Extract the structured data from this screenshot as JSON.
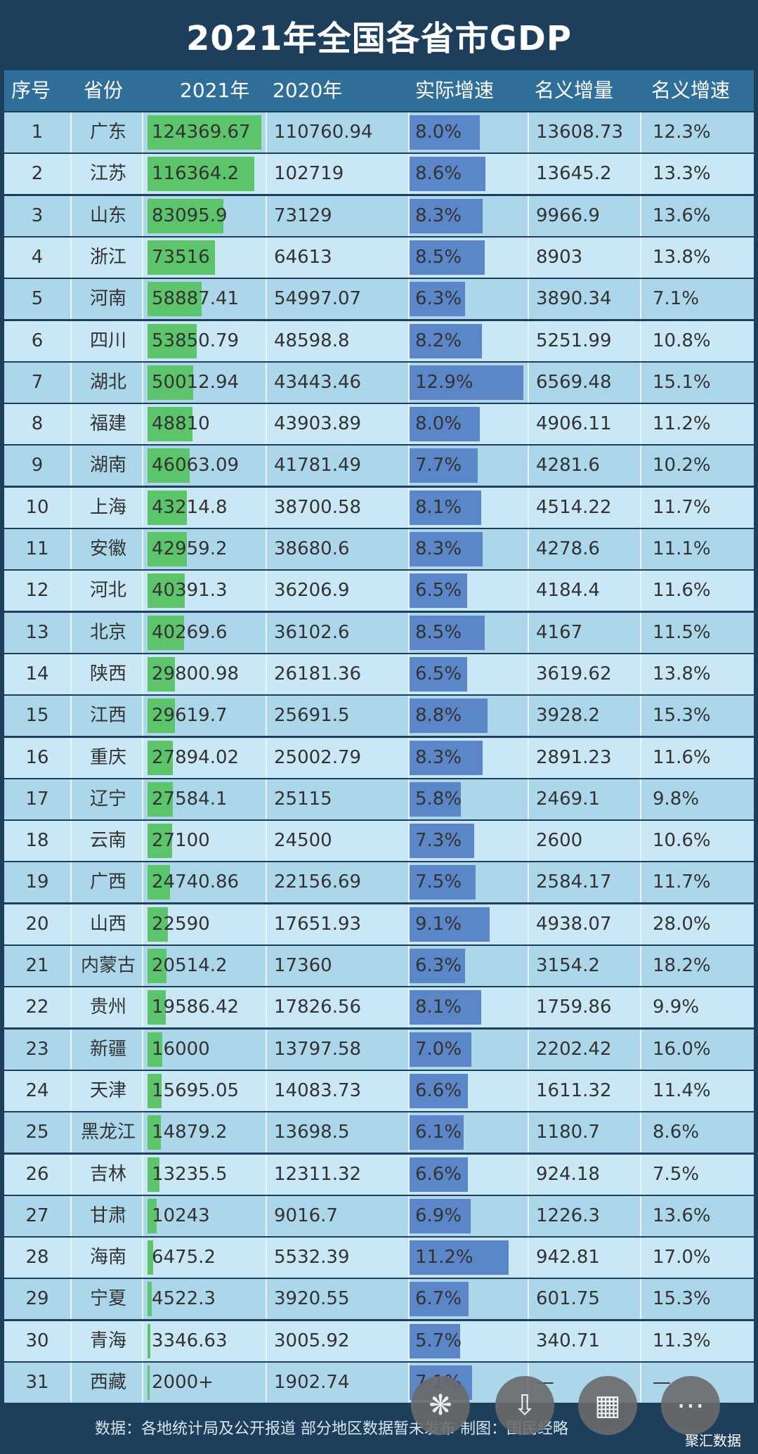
{
  "title": "2021年全国各省市GDP",
  "columns": [
    "序号",
    "省份",
    "2021年",
    "2020年",
    "实际增速",
    "名义增量",
    "名义增速"
  ],
  "chart_data": {
    "type": "table",
    "title": "2021年全国各省市GDP",
    "columns": [
      "序号",
      "省份",
      "2021年",
      "2020年",
      "实际增速",
      "名义增量",
      "名义增速"
    ],
    "rows": [
      [
        "1",
        "广东",
        "124369.67",
        "110760.94",
        "8.0%",
        "13608.73",
        "12.3%"
      ],
      [
        "2",
        "江苏",
        "116364.2",
        "102719",
        "8.6%",
        "13645.2",
        "13.3%"
      ],
      [
        "3",
        "山东",
        "83095.9",
        "73129",
        "8.3%",
        "9966.9",
        "13.6%"
      ],
      [
        "4",
        "浙江",
        "73516",
        "64613",
        "8.5%",
        "8903",
        "13.8%"
      ],
      [
        "5",
        "河南",
        "58887.41",
        "54997.07",
        "6.3%",
        "3890.34",
        "7.1%"
      ],
      [
        "6",
        "四川",
        "53850.79",
        "48598.8",
        "8.2%",
        "5251.99",
        "10.8%"
      ],
      [
        "7",
        "湖北",
        "50012.94",
        "43443.46",
        "12.9%",
        "6569.48",
        "15.1%"
      ],
      [
        "8",
        "福建",
        "48810",
        "43903.89",
        "8.0%",
        "4906.11",
        "11.2%"
      ],
      [
        "9",
        "湖南",
        "46063.09",
        "41781.49",
        "7.7%",
        "4281.6",
        "10.2%"
      ],
      [
        "10",
        "上海",
        "43214.8",
        "38700.58",
        "8.1%",
        "4514.22",
        "11.7%"
      ],
      [
        "11",
        "安徽",
        "42959.2",
        "38680.6",
        "8.3%",
        "4278.6",
        "11.1%"
      ],
      [
        "12",
        "河北",
        "40391.3",
        "36206.9",
        "6.5%",
        "4184.4",
        "11.6%"
      ],
      [
        "13",
        "北京",
        "40269.6",
        "36102.6",
        "8.5%",
        "4167",
        "11.5%"
      ],
      [
        "14",
        "陕西",
        "29800.98",
        "26181.36",
        "6.5%",
        "3619.62",
        "13.8%"
      ],
      [
        "15",
        "江西",
        "29619.7",
        "25691.5",
        "8.8%",
        "3928.2",
        "15.3%"
      ],
      [
        "16",
        "重庆",
        "27894.02",
        "25002.79",
        "8.3%",
        "2891.23",
        "11.6%"
      ],
      [
        "17",
        "辽宁",
        "27584.1",
        "25115",
        "5.8%",
        "2469.1",
        "9.8%"
      ],
      [
        "18",
        "云南",
        "27100",
        "24500",
        "7.3%",
        "2600",
        "10.6%"
      ],
      [
        "19",
        "广西",
        "24740.86",
        "22156.69",
        "7.5%",
        "2584.17",
        "11.7%"
      ],
      [
        "20",
        "山西",
        "22590",
        "17651.93",
        "9.1%",
        "4938.07",
        "28.0%"
      ],
      [
        "21",
        "内蒙古",
        "20514.2",
        "17360",
        "6.3%",
        "3154.2",
        "18.2%"
      ],
      [
        "22",
        "贵州",
        "19586.42",
        "17826.56",
        "8.1%",
        "1759.86",
        "9.9%"
      ],
      [
        "23",
        "新疆",
        "16000",
        "13797.58",
        "7.0%",
        "2202.42",
        "16.0%"
      ],
      [
        "24",
        "天津",
        "15695.05",
        "14083.73",
        "6.6%",
        "1611.32",
        "11.4%"
      ],
      [
        "25",
        "黑龙江",
        "14879.2",
        "13698.5",
        "6.1%",
        "1180.7",
        "8.6%"
      ],
      [
        "26",
        "吉林",
        "13235.5",
        "12311.32",
        "6.6%",
        "924.18",
        "7.5%"
      ],
      [
        "27",
        "甘肃",
        "10243",
        "9016.7",
        "6.9%",
        "1226.3",
        "13.6%"
      ],
      [
        "28",
        "海南",
        "6475.2",
        "5532.39",
        "11.2%",
        "942.81",
        "17.0%"
      ],
      [
        "29",
        "宁夏",
        "4522.3",
        "3920.55",
        "6.7%",
        "601.75",
        "15.3%"
      ],
      [
        "30",
        "青海",
        "3346.63",
        "3005.92",
        "5.7%",
        "340.71",
        "11.3%"
      ],
      [
        "31",
        "西藏",
        "2000+",
        "1902.74",
        "7.1%",
        "—",
        "—"
      ]
    ],
    "gdp_2021_values": [
      124369.67,
      116364.2,
      83095.9,
      73516,
      58887.41,
      53850.79,
      50012.94,
      48810,
      46063.09,
      43214.8,
      42959.2,
      40391.3,
      40269.6,
      29800.98,
      29619.7,
      27894.02,
      27584.1,
      27100,
      24740.86,
      22590,
      20514.2,
      19586.42,
      16000,
      15695.05,
      14879.2,
      13235.5,
      10243,
      6475.2,
      4522.3,
      3346.63,
      2000
    ],
    "real_growth_values": [
      8.0,
      8.6,
      8.3,
      8.5,
      6.3,
      8.2,
      12.9,
      8.0,
      7.7,
      8.1,
      8.3,
      6.5,
      8.5,
      6.5,
      8.8,
      8.3,
      5.8,
      7.3,
      7.5,
      9.1,
      6.3,
      8.1,
      7.0,
      6.6,
      6.1,
      6.6,
      6.9,
      11.2,
      6.7,
      5.7,
      7.1
    ],
    "colors": {
      "gdp_bar": "#5cc46a",
      "growth_bar": "#5b86c7",
      "header": "#2f6f99",
      "title_bg": "#1d3f5c"
    }
  },
  "footer": "数据：各地统计局及公开报道 部分地区数据暂未发布 制图：国民经略",
  "brand": "聚汇数据",
  "fab_icons": [
    "sparkle-icon",
    "download-icon",
    "grid-icon",
    "more-icon"
  ]
}
